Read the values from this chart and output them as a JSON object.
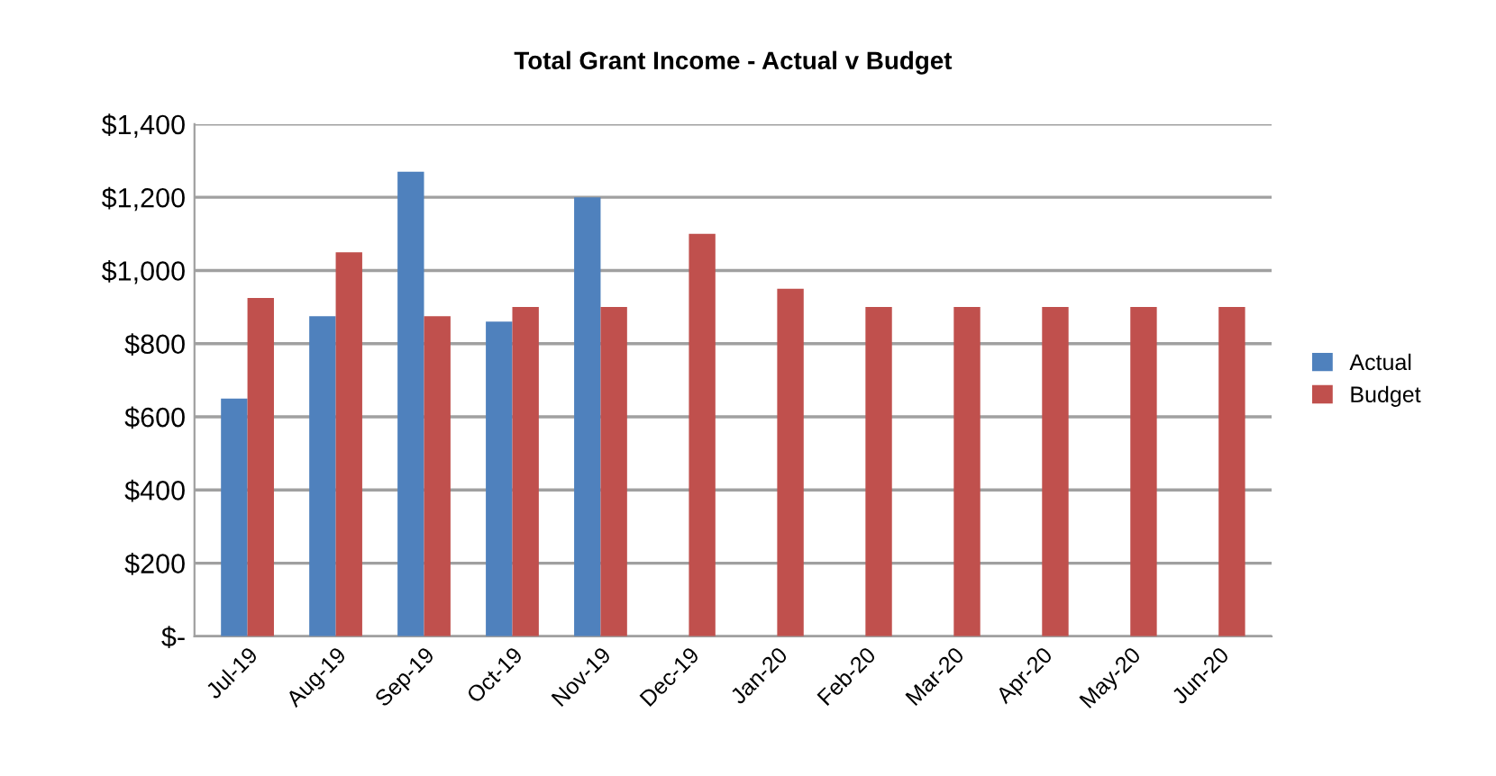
{
  "chart_data": {
    "type": "bar",
    "title": "Total Grant Income - Actual v Budget",
    "categories": [
      "Jul-19",
      "Aug-19",
      "Sep-19",
      "Oct-19",
      "Nov-19",
      "Dec-19",
      "Jan-20",
      "Feb-20",
      "Mar-20",
      "Apr-20",
      "May-20",
      "Jun-20"
    ],
    "series": [
      {
        "name": "Actual",
        "color": "#4f81bd",
        "values": [
          650,
          875,
          1270,
          860,
          1200,
          0,
          0,
          0,
          0,
          0,
          0,
          0
        ]
      },
      {
        "name": "Budget",
        "color": "#c0504d",
        "values": [
          925,
          1050,
          875,
          900,
          900,
          1100,
          950,
          900,
          900,
          900,
          900,
          900
        ]
      }
    ],
    "ylim": [
      0,
      1400
    ],
    "yticks": [
      {
        "value": 0,
        "label": "$-"
      },
      {
        "value": 200,
        "label": "$200"
      },
      {
        "value": 400,
        "label": "$400"
      },
      {
        "value": 600,
        "label": "$600"
      },
      {
        "value": 800,
        "label": "$800"
      },
      {
        "value": 1000,
        "label": "$1,000"
      },
      {
        "value": 1200,
        "label": "$1,200"
      },
      {
        "value": 1400,
        "label": "$1,400"
      }
    ],
    "grid": "y",
    "legend": "right"
  }
}
